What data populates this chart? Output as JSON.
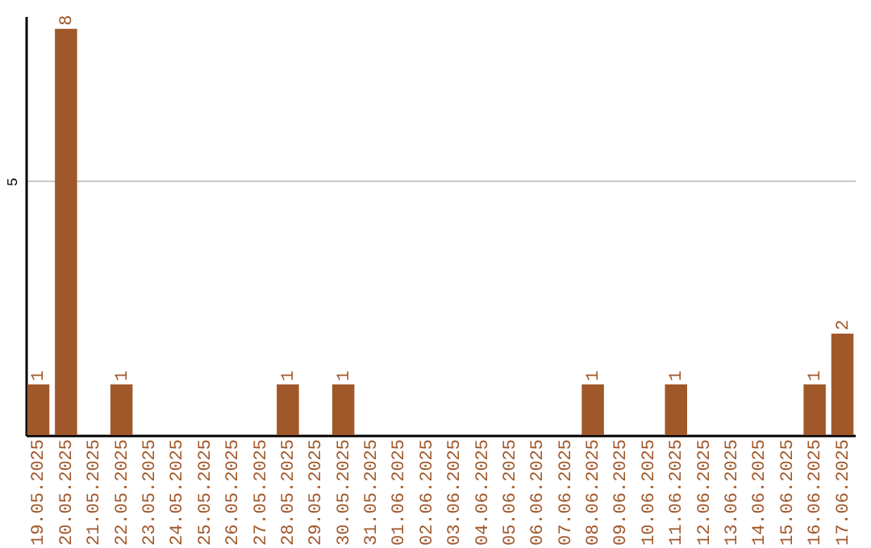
{
  "chart_data": {
    "type": "bar",
    "categories": [
      "19.05.2025",
      "20.05.2025",
      "21.05.2025",
      "22.05.2025",
      "23.05.2025",
      "24.05.2025",
      "25.05.2025",
      "26.05.2025",
      "27.05.2025",
      "28.05.2025",
      "29.05.2025",
      "30.05.2025",
      "31.05.2025",
      "01.06.2025",
      "02.06.2025",
      "03.06.2025",
      "04.06.2025",
      "05.06.2025",
      "06.06.2025",
      "07.06.2025",
      "08.06.2025",
      "09.06.2025",
      "10.06.2025",
      "11.06.2025",
      "12.06.2025",
      "13.06.2025",
      "14.06.2025",
      "15.06.2025",
      "16.06.2025",
      "17.06.2025"
    ],
    "values": [
      1,
      8,
      null,
      1,
      null,
      null,
      null,
      null,
      null,
      1,
      null,
      1,
      null,
      null,
      null,
      null,
      null,
      null,
      null,
      null,
      1,
      null,
      null,
      1,
      null,
      null,
      null,
      null,
      1,
      2
    ],
    "color": "#a0582a",
    "ylim": [
      0,
      8.25
    ],
    "yticks": [
      5
    ],
    "grid": "y",
    "data_labels": true
  }
}
